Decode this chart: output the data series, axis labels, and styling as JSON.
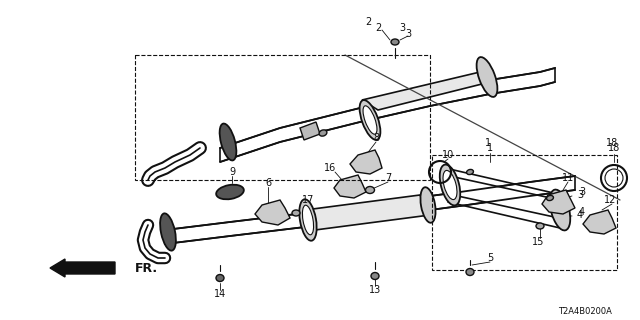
{
  "bg_color": "#ffffff",
  "line_color": "#111111",
  "diagram_code": "T2A4B0200A",
  "fig_w": 6.4,
  "fig_h": 3.2,
  "dpi": 100
}
